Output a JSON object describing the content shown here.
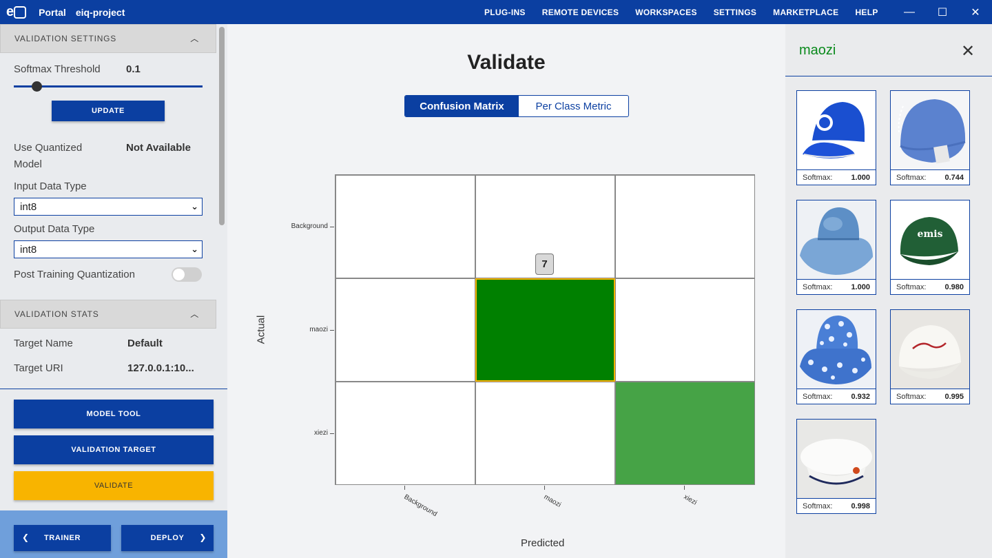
{
  "topbar": {
    "brand": "Portal",
    "project": "eiq-project",
    "nav": [
      "PLUG-INS",
      "REMOTE DEVICES",
      "WORKSPACES",
      "SETTINGS",
      "MARKETPLACE",
      "HELP"
    ],
    "window": {
      "minimize": "—",
      "maximize": "☐",
      "close": "✕"
    }
  },
  "sidebar": {
    "validation_settings": "VALIDATION SETTINGS",
    "softmax_label": "Softmax Threshold",
    "softmax_value": "0.1",
    "softmax_fraction": 0.1,
    "update": "UPDATE",
    "quantized_label_1": "Use Quantized",
    "quantized_label_2": "Model",
    "quantized_value": "Not Available",
    "input_type_label": "Input Data Type",
    "input_type_value": "int8",
    "output_type_label": "Output Data Type",
    "output_type_value": "int8",
    "ptq_label": "Post Training Quantization",
    "ptq_enabled": false,
    "validation_stats": "VALIDATION STATS",
    "target_name_label": "Target Name",
    "target_name_value": "Default",
    "target_uri_label": "Target URI",
    "target_uri_value": "127.0.0.1:10...",
    "model_tool": "MODEL TOOL",
    "validation_target": "VALIDATION TARGET",
    "validate": "VALIDATE",
    "trainer": "TRAINER",
    "deploy": "DEPLOY"
  },
  "main": {
    "title": "Validate",
    "tab_confusion": "Confusion Matrix",
    "tab_per_class": "Per Class Metric",
    "tooltip_value": "7"
  },
  "chart_data": {
    "type": "heatmap",
    "xlabel": "Predicted",
    "ylabel": "Actual",
    "x_categories": [
      "Background",
      "maozi",
      "xiezi"
    ],
    "y_categories": [
      "Background",
      "maozi",
      "xiezi"
    ],
    "highlight_cell": {
      "row": "maozi",
      "col": "maozi",
      "value": 7
    },
    "colors": {
      "maozi_maozi": "#008000",
      "xiezi_xiezi": "#46a346",
      "empty": "#ffffff",
      "highlight_border": "#f8b400"
    }
  },
  "rpanel": {
    "title": "maozi",
    "close": "✕",
    "softmax_label": "Softmax:",
    "cards": [
      {
        "value": "1.000",
        "icon": "blue-cap-image"
      },
      {
        "value": "0.744",
        "icon": "blue-cap-back-image"
      },
      {
        "value": "1.000",
        "icon": "denim-bucket-hat-image"
      },
      {
        "value": "0.980",
        "icon": "green-cap-image"
      },
      {
        "value": "0.932",
        "icon": "patterned-bucket-hat-image"
      },
      {
        "value": "0.995",
        "icon": "white-cap-image"
      },
      {
        "value": "0.998",
        "icon": "white-beret-image"
      }
    ]
  },
  "colors": {
    "primary": "#0b3fa1",
    "accent": "#f8b400",
    "success": "#0a8a1c"
  }
}
